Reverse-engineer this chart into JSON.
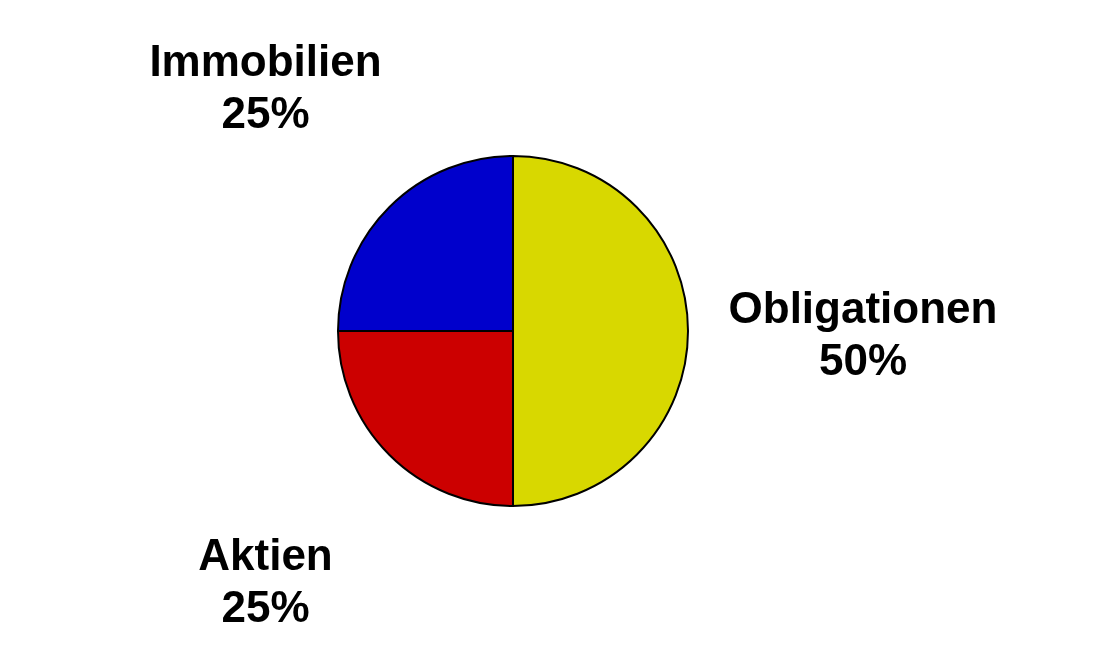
{
  "chart_data": {
    "type": "pie",
    "categories": [
      "Obligationen",
      "Aktien",
      "Immobilien"
    ],
    "values": [
      50,
      25,
      25
    ],
    "value_labels": [
      "50%",
      "25%",
      "25%"
    ],
    "colors": [
      "#d8d800",
      "#cc0000",
      "#0000cc"
    ]
  }
}
